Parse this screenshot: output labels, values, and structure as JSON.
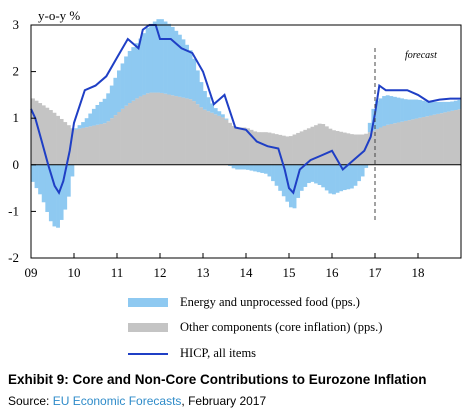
{
  "chart_data": {
    "type": "area",
    "ylabel": "y-o-y %",
    "ylim": [
      -2,
      3
    ],
    "y_ticks": [
      "-2",
      "-1",
      "0",
      "1",
      "2",
      "3"
    ],
    "x_ticks": [
      "09",
      "10",
      "11",
      "12",
      "13",
      "14",
      "15",
      "16",
      "17",
      "18"
    ],
    "xlim": [
      2009.0,
      2019.0
    ],
    "forecast_label": "forecast",
    "forecast_start": 2017.0,
    "grid": false,
    "legend_position": "bottom",
    "colors": {
      "energy_food": "#8ec9f1",
      "core": "#c4c4c4",
      "hicp": "#1f3fc5",
      "forecast_line": "#444444"
    },
    "series": [
      {
        "name": "Energy and unprocessed food (pps.)",
        "x": [
          2009.0,
          2009.25,
          2009.45,
          2009.6,
          2009.75,
          2009.9,
          2010.0,
          2010.25,
          2010.5,
          2010.75,
          2011.0,
          2011.25,
          2011.5,
          2011.75,
          2012.0,
          2012.25,
          2012.5,
          2012.75,
          2013.0,
          2013.25,
          2013.5,
          2013.75,
          2014.0,
          2014.25,
          2014.5,
          2014.75,
          2015.0,
          2015.1,
          2015.25,
          2015.5,
          2015.75,
          2016.0,
          2016.25,
          2016.5,
          2016.75,
          2017.0,
          2017.25,
          2017.5,
          2017.75,
          2018.0,
          2018.25,
          2018.5,
          2018.75,
          2019.0
        ],
        "values": [
          -0.3,
          -0.7,
          -1.2,
          -1.4,
          -1.1,
          -0.6,
          0.0,
          0.15,
          0.4,
          0.55,
          0.85,
          1.1,
          1.2,
          1.45,
          1.6,
          1.5,
          1.3,
          1.0,
          0.45,
          0.15,
          0.05,
          -0.1,
          -0.1,
          -0.15,
          -0.2,
          -0.5,
          -0.85,
          -1.0,
          -0.6,
          -0.35,
          -0.45,
          -0.65,
          -0.55,
          -0.5,
          -0.2,
          0.6,
          0.65,
          0.55,
          0.45,
          0.4,
          0.3,
          0.25,
          0.2,
          0.2
        ]
      },
      {
        "name": "Other components (core inflation) (pps.)",
        "x": [
          2009.0,
          2009.25,
          2009.5,
          2009.75,
          2010.0,
          2010.25,
          2010.5,
          2010.75,
          2011.0,
          2011.25,
          2011.5,
          2011.75,
          2012.0,
          2012.25,
          2012.5,
          2012.75,
          2013.0,
          2013.25,
          2013.5,
          2013.75,
          2014.0,
          2014.25,
          2014.5,
          2014.75,
          2015.0,
          2015.25,
          2015.5,
          2015.75,
          2016.0,
          2016.25,
          2016.5,
          2016.75,
          2017.0,
          2017.25,
          2017.5,
          2017.75,
          2018.0,
          2018.25,
          2018.5,
          2018.75,
          2019.0
        ],
        "values": [
          1.45,
          1.3,
          1.15,
          0.95,
          0.75,
          0.8,
          0.85,
          0.9,
          1.1,
          1.3,
          1.45,
          1.55,
          1.55,
          1.5,
          1.45,
          1.4,
          1.2,
          1.1,
          1.0,
          0.8,
          0.8,
          0.7,
          0.7,
          0.65,
          0.6,
          0.7,
          0.8,
          0.9,
          0.75,
          0.7,
          0.65,
          0.65,
          0.75,
          0.85,
          0.9,
          0.95,
          1.0,
          1.05,
          1.1,
          1.15,
          1.2
        ]
      },
      {
        "name": "HICP, all items",
        "x": [
          2009.0,
          2009.1,
          2009.25,
          2009.4,
          2009.55,
          2009.65,
          2009.75,
          2009.9,
          2010.0,
          2010.25,
          2010.5,
          2010.75,
          2011.0,
          2011.25,
          2011.5,
          2011.6,
          2011.75,
          2011.9,
          2012.0,
          2012.25,
          2012.5,
          2012.75,
          2013.0,
          2013.25,
          2013.5,
          2013.75,
          2014.0,
          2014.25,
          2014.5,
          2014.75,
          2014.9,
          2015.0,
          2015.1,
          2015.25,
          2015.5,
          2015.75,
          2016.0,
          2016.25,
          2016.5,
          2016.75,
          2016.9,
          2017.0,
          2017.1,
          2017.25,
          2017.5,
          2017.75,
          2018.0,
          2018.25,
          2018.5,
          2018.75,
          2019.0
        ],
        "values": [
          1.2,
          1.0,
          0.5,
          0.0,
          -0.45,
          -0.6,
          -0.35,
          0.3,
          0.9,
          1.6,
          1.7,
          1.9,
          2.3,
          2.7,
          2.5,
          2.9,
          3.0,
          3.0,
          2.7,
          2.7,
          2.5,
          2.4,
          2.0,
          1.3,
          1.5,
          0.8,
          0.75,
          0.5,
          0.4,
          0.35,
          -0.1,
          -0.5,
          -0.6,
          -0.1,
          0.1,
          0.2,
          0.3,
          -0.1,
          0.1,
          0.3,
          0.6,
          1.1,
          1.7,
          1.6,
          1.6,
          1.6,
          1.5,
          1.35,
          1.4,
          1.42,
          1.42
        ]
      }
    ]
  },
  "legend": {
    "energy_food": "Energy and unprocessed food (pps.)",
    "core": "Other components (core inflation) (pps.)",
    "hicp": "HICP, all items"
  },
  "caption": {
    "title": "Exhibit 9: Core and Non-Core Contributions to Eurozone Inflation",
    "source_prefix": "Source: ",
    "source_link": "EU Economic Forecasts",
    "source_suffix": ", February 2017"
  }
}
